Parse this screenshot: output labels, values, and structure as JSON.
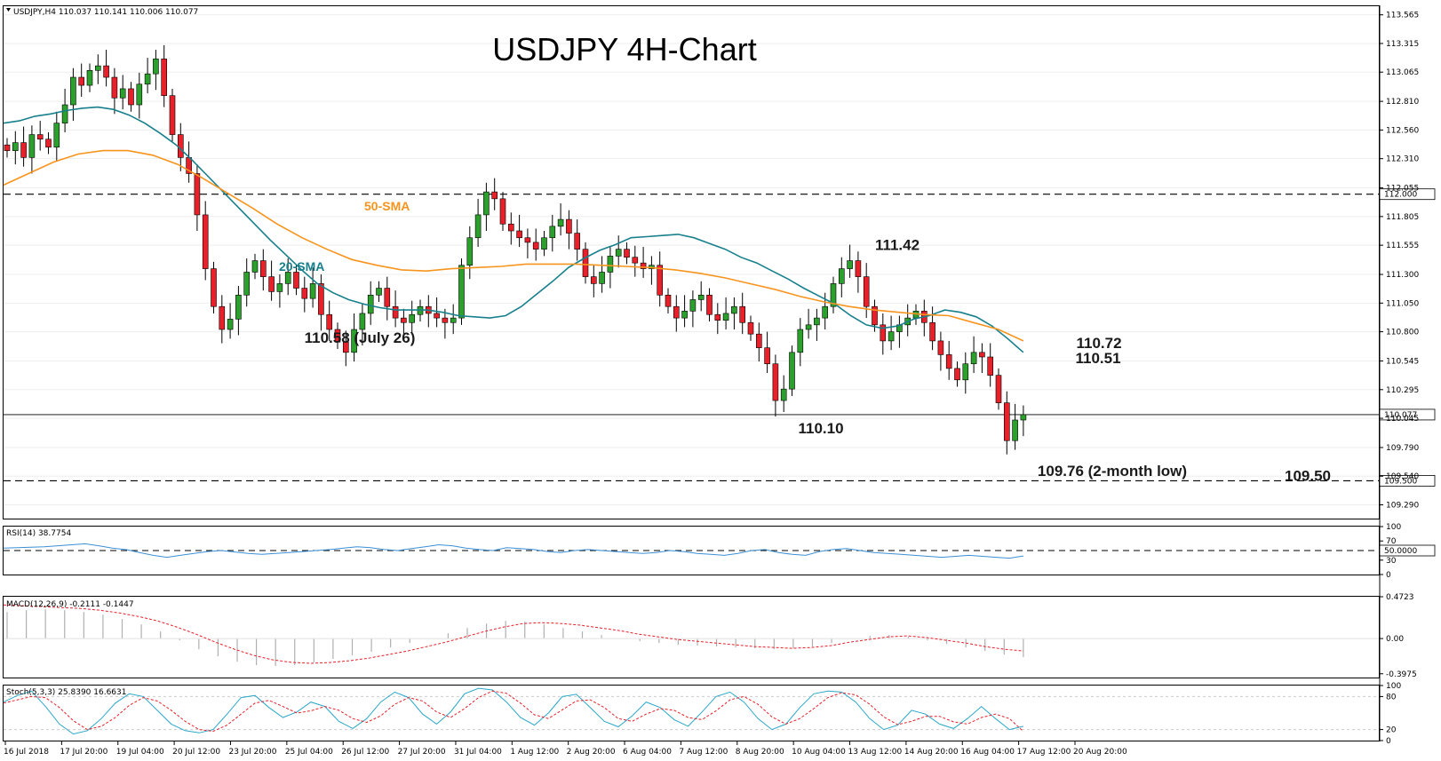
{
  "chart_data": {
    "type": "candlestick",
    "symbol_header": "USDJPY,H4  110.037 110.141 110.006 110.077",
    "title": "USDJPY 4H-Chart",
    "price_axis": {
      "ylim": [
        109.17,
        113.64
      ],
      "ticks": [
        "113.565",
        "113.315",
        "113.065",
        "112.810",
        "112.560",
        "112.310",
        "112.055",
        "111.805",
        "111.555",
        "111.300",
        "111.050",
        "110.800",
        "110.545",
        "110.295",
        "110.045",
        "109.790",
        "109.540",
        "109.290"
      ],
      "tick_values": [
        113.565,
        113.315,
        113.065,
        112.81,
        112.56,
        112.31,
        112.055,
        111.805,
        111.555,
        111.3,
        111.05,
        110.8,
        110.545,
        110.295,
        110.045,
        109.79,
        109.54,
        109.29
      ],
      "levels": [
        {
          "label": "112.000",
          "value": 112.0,
          "style": "dashed"
        },
        {
          "label": "110.077",
          "value": 110.077,
          "style": "solid-thin"
        },
        {
          "label": "109.500",
          "value": 109.5,
          "style": "dashed"
        }
      ]
    },
    "x_tick_labels": [
      "16 Jul 2018",
      "17 Jul 20:00",
      "19 Jul 04:00",
      "20 Jul 12:00",
      "23 Jul 20:00",
      "25 Jul 04:00",
      "26 Jul 12:00",
      "27 Jul 20:00",
      "31 Jul 04:00",
      "1 Aug 12:00",
      "2 Aug 20:00",
      "6 Aug 04:00",
      "7 Aug 12:00",
      "8 Aug 20:00",
      "10 Aug 04:00",
      "13 Aug 12:00",
      "14 Aug 20:00",
      "16 Aug 04:00",
      "17 Aug 12:00",
      "20 Aug 20:00"
    ],
    "closes": [
      112.38,
      112.45,
      112.32,
      112.52,
      112.48,
      112.41,
      112.62,
      112.78,
      113.02,
      112.95,
      113.08,
      113.12,
      113.02,
      112.84,
      112.92,
      112.78,
      112.96,
      113.05,
      113.18,
      112.86,
      112.52,
      112.32,
      112.18,
      111.82,
      111.35,
      111.02,
      110.82,
      110.91,
      111.12,
      111.32,
      111.42,
      111.28,
      111.15,
      111.22,
      111.32,
      111.18,
      111.09,
      111.22,
      110.95,
      110.82,
      110.71,
      110.62,
      110.82,
      110.96,
      111.12,
      111.18,
      111.02,
      110.92,
      110.88,
      110.95,
      111.02,
      110.96,
      110.92,
      110.88,
      110.92,
      111.38,
      111.62,
      111.82,
      112.02,
      111.96,
      111.74,
      111.68,
      111.62,
      111.58,
      111.52,
      111.62,
      111.72,
      111.78,
      111.66,
      111.52,
      111.28,
      111.22,
      111.32,
      111.46,
      111.52,
      111.45,
      111.4,
      111.35,
      111.38,
      111.12,
      111.02,
      110.92,
      110.98,
      111.08,
      111.12,
      110.95,
      110.9,
      110.96,
      111.02,
      110.88,
      110.78,
      110.66,
      110.52,
      110.2,
      110.3,
      110.62,
      110.82,
      110.86,
      110.92,
      111.02,
      111.22,
      111.35,
      111.42,
      111.28,
      111.02,
      110.86,
      110.72,
      110.8,
      110.86,
      110.92,
      110.98,
      110.88,
      110.72,
      110.6,
      110.48,
      110.38,
      110.52,
      110.62,
      110.58,
      110.42,
      110.18,
      109.85,
      110.03,
      110.077
    ],
    "sma20": [
      112.62,
      112.64,
      112.68,
      112.7,
      112.73,
      112.75,
      112.76,
      112.74,
      112.69,
      112.62,
      112.53,
      112.43,
      112.3,
      112.16,
      112.02,
      111.88,
      111.74,
      111.6,
      111.47,
      111.34,
      111.22,
      111.14,
      111.08,
      111.04,
      111.01,
      110.99,
      110.99,
      110.99,
      110.97,
      110.94,
      110.93,
      110.92,
      110.94,
      111.02,
      111.13,
      111.24,
      111.36,
      111.44,
      111.51,
      111.56,
      111.62,
      111.63,
      111.64,
      111.65,
      111.62,
      111.57,
      111.52,
      111.45,
      111.4,
      111.33,
      111.26,
      111.18,
      111.11,
      111.04,
      110.94,
      110.86,
      110.83,
      110.85,
      110.91,
      110.94,
      110.99,
      110.97,
      110.93,
      110.85,
      110.74,
      110.62
    ],
    "sma20_label": "20-SMA",
    "sma50": [
      112.08,
      112.18,
      112.28,
      112.35,
      112.38,
      112.38,
      112.34,
      112.26,
      112.14,
      112.01,
      111.88,
      111.74,
      111.62,
      111.52,
      111.43,
      111.38,
      111.34,
      111.33,
      111.35,
      111.36,
      111.37,
      111.39,
      111.39,
      111.39,
      111.38,
      111.37,
      111.36,
      111.34,
      111.31,
      111.27,
      111.22,
      111.17,
      111.11,
      111.06,
      111.02,
      110.99,
      110.97,
      110.95,
      110.94,
      110.88,
      110.82,
      110.72
    ],
    "sma50_label": "50-SMA",
    "annotations": [
      {
        "text": "111.42",
        "price": 111.42
      },
      {
        "text": "110.58 (July 26)",
        "price": 110.58
      },
      {
        "text": "110.10",
        "price": 110.1
      },
      {
        "text": "109.76 (2-month low)",
        "price": 109.76
      },
      {
        "text": "110.72",
        "price": 110.72,
        "color": "#f7941d"
      },
      {
        "text": "110.51",
        "price": 110.51,
        "color": "#17808c"
      },
      {
        "text": "109.50",
        "price": 109.5
      }
    ],
    "rsi": {
      "label": "RSI(14) 38.7754",
      "ticks": [
        "100",
        "70",
        "30",
        "0"
      ],
      "level_label": "50.0000",
      "values": [
        55,
        56,
        57,
        58,
        60,
        62,
        64,
        60,
        55,
        52,
        46,
        40,
        36,
        40,
        44,
        48,
        50,
        47,
        44,
        42,
        44,
        46,
        48,
        50,
        52,
        55,
        58,
        56,
        52,
        50,
        54,
        58,
        62,
        60,
        55,
        52,
        50,
        56,
        54,
        52,
        48,
        46,
        50,
        52,
        50,
        48,
        46,
        44,
        46,
        50,
        48,
        44,
        42,
        40,
        44,
        50,
        52,
        46,
        42,
        40,
        48,
        52,
        54,
        50,
        46,
        44,
        42,
        40,
        38,
        36,
        38,
        40,
        38,
        36,
        34,
        38.78
      ]
    },
    "macd": {
      "label": "MACD(12,26,9) -0.2111 -0.1447",
      "ticks": [
        "0.4723",
        "0.00",
        "-0.3975"
      ],
      "histogram": [
        0.3,
        0.32,
        0.33,
        0.32,
        0.3,
        0.27,
        0.22,
        0.16,
        0.08,
        -0.02,
        -0.12,
        -0.2,
        -0.26,
        -0.3,
        -0.31,
        -0.3,
        -0.27,
        -0.23,
        -0.19,
        -0.15,
        -0.1,
        -0.05,
        0.0,
        0.06,
        0.12,
        0.17,
        0.2,
        0.19,
        0.16,
        0.12,
        0.08,
        0.04,
        0.0,
        -0.03,
        -0.05,
        -0.07,
        -0.08,
        -0.09,
        -0.1,
        -0.11,
        -0.12,
        -0.11,
        -0.09,
        -0.05,
        0.0,
        0.03,
        0.04,
        0.02,
        -0.02,
        -0.06,
        -0.1,
        -0.14,
        -0.18,
        -0.21
      ],
      "signal": [
        0.38,
        0.37,
        0.36,
        0.35,
        0.34,
        0.32,
        0.29,
        0.25,
        0.2,
        0.13,
        0.05,
        -0.04,
        -0.12,
        -0.19,
        -0.24,
        -0.27,
        -0.28,
        -0.27,
        -0.25,
        -0.22,
        -0.18,
        -0.14,
        -0.09,
        -0.04,
        0.02,
        0.08,
        0.13,
        0.17,
        0.18,
        0.17,
        0.15,
        0.12,
        0.09,
        0.05,
        0.02,
        -0.01,
        -0.03,
        -0.05,
        -0.07,
        -0.09,
        -0.1,
        -0.11,
        -0.1,
        -0.08,
        -0.04,
        -0.01,
        0.02,
        0.03,
        0.01,
        -0.02,
        -0.05,
        -0.09,
        -0.12,
        -0.14
      ]
    },
    "stoch": {
      "label": "Stoch(5,3,3) 25.8390 16.6631",
      "ticks": [
        "100",
        "80",
        "20",
        "0"
      ],
      "k": [
        70,
        82,
        90,
        62,
        30,
        12,
        18,
        40,
        68,
        85,
        80,
        55,
        30,
        18,
        14,
        20,
        48,
        78,
        82,
        60,
        42,
        52,
        70,
        62,
        35,
        22,
        40,
        70,
        88,
        78,
        48,
        30,
        52,
        85,
        95,
        92,
        70,
        42,
        28,
        50,
        80,
        84,
        60,
        35,
        25,
        45,
        70,
        60,
        38,
        26,
        52,
        80,
        88,
        70,
        40,
        20,
        30,
        60,
        85,
        90,
        88,
        70,
        40,
        20,
        28,
        55,
        48,
        30,
        22,
        40,
        62,
        40,
        20,
        25.84
      ],
      "d": [
        68,
        74,
        80,
        78,
        60,
        36,
        20,
        26,
        42,
        64,
        78,
        72,
        55,
        35,
        20,
        17,
        28,
        48,
        68,
        73,
        62,
        50,
        54,
        62,
        55,
        40,
        33,
        45,
        66,
        78,
        72,
        52,
        42,
        58,
        78,
        90,
        86,
        68,
        47,
        40,
        56,
        72,
        74,
        60,
        40,
        35,
        48,
        58,
        55,
        42,
        38,
        54,
        74,
        80,
        66,
        43,
        30,
        40,
        58,
        78,
        87,
        83,
        66,
        43,
        29,
        35,
        44,
        44,
        34,
        30,
        42,
        48,
        40,
        16.66
      ]
    }
  },
  "colors": {
    "bull": "#2ca02c",
    "bear": "#e8202a",
    "sma20": "#17808c",
    "sma50": "#f7941d",
    "rsi": "#3b8fd6",
    "macd_hist": "#b0b0b0",
    "macd_signal": "#e8202a",
    "stoch_k": "#2aa7c9",
    "stoch_d": "#e8202a"
  }
}
